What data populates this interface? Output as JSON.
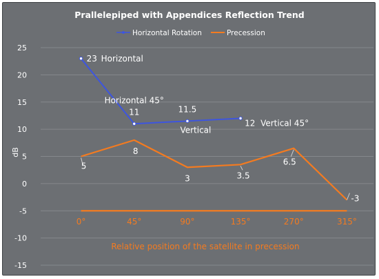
{
  "chart_data": {
    "type": "line",
    "title": "Prallelepiped with Appendices Reflection Trend",
    "ylabel": "dB",
    "xlabel": "Relative position of the satellite in precession",
    "ylim": [
      -15,
      25
    ],
    "yticks": [
      25,
      20,
      15,
      10,
      5,
      0,
      -5,
      -10,
      -15
    ],
    "grid": true,
    "legend_position": "top",
    "categories": [
      "0°",
      "45°",
      "90°",
      "135°",
      "270°",
      "315°"
    ],
    "series": [
      {
        "name": "Horizontal Rotation",
        "color": "#3d55e0",
        "x": [
          "0°",
          "45°",
          "90°",
          "135°"
        ],
        "values": [
          23,
          11,
          11.5,
          12
        ],
        "labels": [
          "23",
          "11",
          "11.5",
          "12"
        ],
        "annotations": [
          "Horizontal",
          "Horizontal 45°",
          "Vertical",
          "Vertical 45°"
        ]
      },
      {
        "name": "Precession",
        "color": "#f47b20",
        "x": [
          "0°",
          "45°",
          "90°",
          "135°",
          "270°",
          "315°"
        ],
        "values": [
          5,
          8,
          3,
          3.5,
          6.5,
          -3
        ],
        "labels": [
          "5",
          "8",
          "3",
          "3.5",
          "6.5",
          "-3"
        ]
      }
    ],
    "reference_line": {
      "value": -5,
      "color": "#f47b20"
    }
  }
}
